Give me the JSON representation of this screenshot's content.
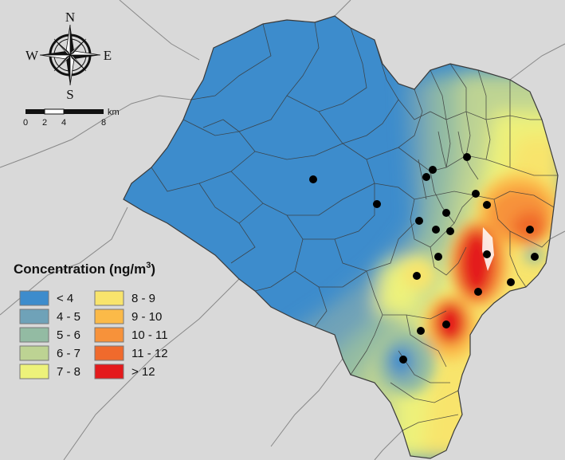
{
  "compass": {
    "north": "N",
    "south": "S",
    "east": "E",
    "west": "W"
  },
  "scale_bar": {
    "ticks": [
      "0",
      "2",
      "4",
      "8"
    ],
    "unit": "km"
  },
  "legend": {
    "title_main": "Concentration (ng/m",
    "title_sup": "3",
    "title_close": ")",
    "items": [
      {
        "label": "< 4",
        "color": "#3d8ccc"
      },
      {
        "label": "4 - 5",
        "color": "#6fa2b8"
      },
      {
        "label": "5 - 6",
        "color": "#93bba3"
      },
      {
        "label": "6 - 7",
        "color": "#bdd393"
      },
      {
        "label": "7 - 8",
        "color": "#edf27a"
      },
      {
        "label": "8 - 9",
        "color": "#f8e46c"
      },
      {
        "label": "9 - 10",
        "color": "#fbba48"
      },
      {
        "label": "10 - 11",
        "color": "#f7923a"
      },
      {
        "label": "11 - 12",
        "color": "#f06a2c"
      },
      {
        "label": "> 12",
        "color": "#e41a1c"
      }
    ]
  },
  "colors": {
    "background": "#d9d9d9",
    "boundary": "#3a3a3a",
    "station": "#000000"
  },
  "stations_count_note": ""
}
